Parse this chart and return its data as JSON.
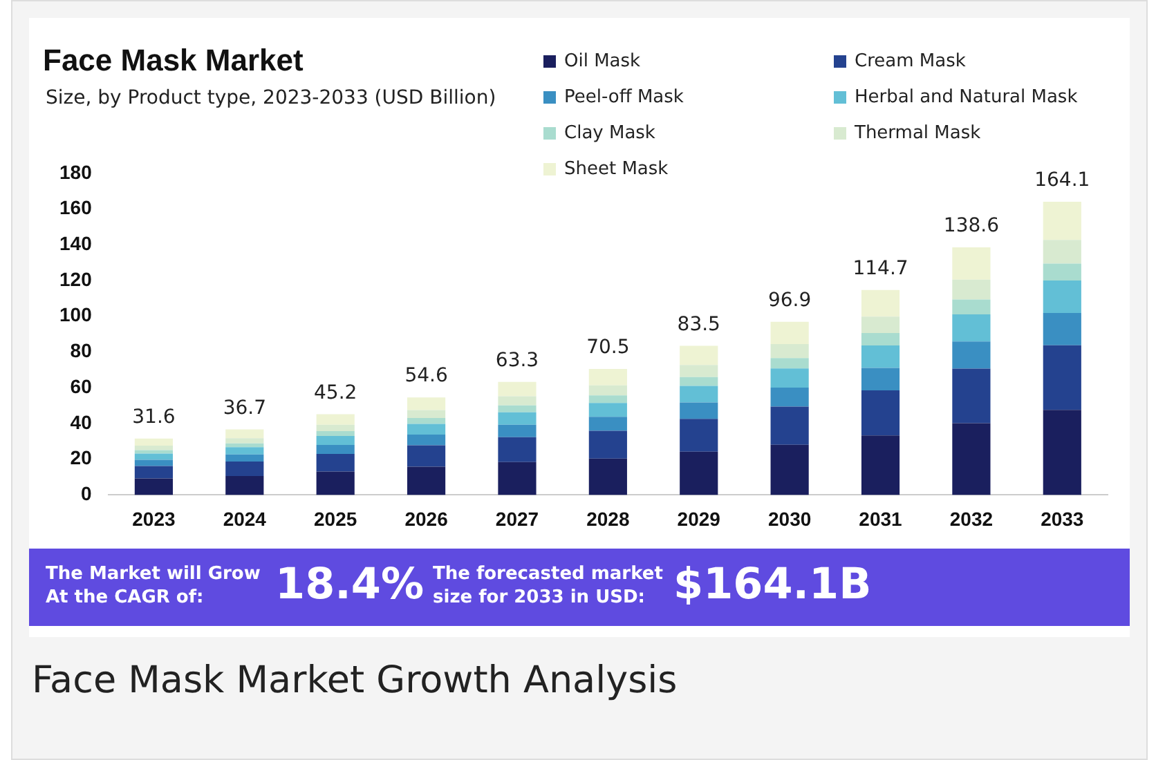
{
  "chart_data": {
    "type": "bar",
    "title": "Face Mask Market",
    "subtitle": "Size, by Product type, 2023-2033 (USD Billion)",
    "categories": [
      "2023",
      "2024",
      "2025",
      "2026",
      "2027",
      "2028",
      "2029",
      "2030",
      "2031",
      "2032",
      "2033"
    ],
    "stacked": true,
    "legend": "top right",
    "grid": false,
    "ylim": [
      0,
      180
    ],
    "yticks": [
      0,
      20,
      40,
      60,
      80,
      100,
      120,
      140,
      160,
      180
    ],
    "totals": [
      "31.6",
      "36.7",
      "45.2",
      "54.6",
      "63.3",
      "70.5",
      "83.5",
      "96.9",
      "114.7",
      "138.6",
      "164.1"
    ],
    "series": [
      {
        "name": "Oil Mask",
        "color": "#1a1f5e",
        "values": [
          9.2,
          10.6,
          13.1,
          15.8,
          18.4,
          20.4,
          24.2,
          28.1,
          33.3,
          40.2,
          47.6
        ]
      },
      {
        "name": "Cream Mask",
        "color": "#24428f",
        "values": [
          7.0,
          8.1,
          9.9,
          12.0,
          13.9,
          15.5,
          18.4,
          21.3,
          25.2,
          30.5,
          36.2
        ]
      },
      {
        "name": "Peel-off Mask",
        "color": "#3a8fc2",
        "values": [
          3.5,
          4.0,
          5.0,
          6.0,
          7.0,
          7.8,
          9.2,
          10.7,
          12.6,
          15.2,
          18.0
        ]
      },
      {
        "name": "Herbal and Natural Mask",
        "color": "#62bfd6",
        "values": [
          3.5,
          4.0,
          5.0,
          6.0,
          7.0,
          7.8,
          9.2,
          10.7,
          12.6,
          15.2,
          18.2
        ]
      },
      {
        "name": "Clay Mask",
        "color": "#a9dccf",
        "values": [
          1.9,
          2.2,
          2.7,
          3.3,
          3.8,
          4.2,
          5.0,
          5.8,
          6.9,
          8.3,
          9.5
        ]
      },
      {
        "name": "Thermal Mask",
        "color": "#d8ead0",
        "values": [
          2.5,
          2.9,
          3.6,
          4.4,
          5.1,
          5.6,
          6.7,
          7.8,
          9.2,
          11.1,
          13.2
        ]
      },
      {
        "name": "Sheet Mask",
        "color": "#eef3d3",
        "values": [
          4.0,
          4.9,
          5.9,
          7.1,
          8.1,
          9.2,
          10.8,
          12.5,
          14.9,
          18.1,
          21.4
        ]
      }
    ],
    "annotations": [
      "The Market will Grow At the CAGR of:",
      "18.4%",
      "The forecasted market size for 2033 in USD:",
      "$164.1B",
      "Face Mask Market Growth Analysis"
    ]
  }
}
